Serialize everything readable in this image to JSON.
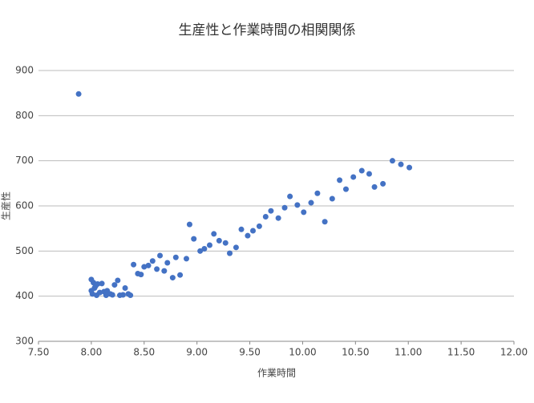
{
  "chart_data": {
    "type": "scatter",
    "title": "生産性と作業時間の相関関係",
    "x_label": "作業時間",
    "y_label": "生産性",
    "series": [
      {
        "color": "#4472c4",
        "x": [
          7.88,
          8.0,
          8.02,
          8.04,
          8.06,
          8.0,
          8.01,
          8.03,
          8.05,
          8.08,
          8.1,
          8.12,
          8.14,
          8.15,
          8.18,
          8.2,
          8.22,
          8.25,
          8.27,
          8.3,
          8.32,
          8.35,
          8.37,
          8.4,
          8.44,
          8.47,
          8.5,
          8.54,
          8.58,
          8.62,
          8.65,
          8.69,
          8.72,
          8.77,
          8.8,
          8.84,
          8.9,
          8.93,
          8.97,
          9.03,
          9.07,
          9.12,
          9.16,
          9.21,
          9.27,
          9.31,
          9.37,
          9.42,
          9.48,
          9.53,
          9.59,
          9.65,
          9.7,
          9.77,
          9.83,
          9.88,
          9.95,
          10.01,
          10.08,
          10.14,
          10.21,
          10.28,
          10.35,
          10.41,
          10.48,
          10.56,
          10.63,
          10.68,
          10.76,
          10.85,
          10.93,
          11.01
        ],
        "values": [
          848,
          437,
          430,
          422,
          427,
          412,
          405,
          418,
          402,
          408,
          428,
          410,
          402,
          412,
          405,
          403,
          425,
          435,
          402,
          403,
          418,
          405,
          402,
          470,
          450,
          448,
          465,
          468,
          478,
          460,
          490,
          456,
          474,
          441,
          486,
          447,
          483,
          559,
          527,
          500,
          505,
          513,
          538,
          523,
          518,
          495,
          508,
          548,
          534,
          545,
          555,
          576,
          589,
          573,
          596,
          621,
          602,
          586,
          607,
          628,
          565,
          616,
          657,
          637,
          664,
          678,
          671,
          642,
          649,
          700,
          692,
          685
        ]
      }
    ],
    "xlim": [
      7.5,
      12.0
    ],
    "xticks": [
      {
        "value": 7.5,
        "label": "7.50"
      },
      {
        "value": 8.0,
        "label": "8.00"
      },
      {
        "value": 8.5,
        "label": "8.50"
      },
      {
        "value": 9.0,
        "label": "9.00"
      },
      {
        "value": 9.5,
        "label": "9.50"
      },
      {
        "value": 10.0,
        "label": "10.00"
      },
      {
        "value": 10.5,
        "label": "10.50"
      },
      {
        "value": 11.0,
        "label": "11.00"
      },
      {
        "value": 11.5,
        "label": "11.50"
      },
      {
        "value": 12.0,
        "label": "12.00"
      }
    ],
    "ylim": [
      300,
      900
    ],
    "yticks": [
      300,
      400,
      500,
      600,
      700,
      800,
      900
    ],
    "grid": true
  }
}
